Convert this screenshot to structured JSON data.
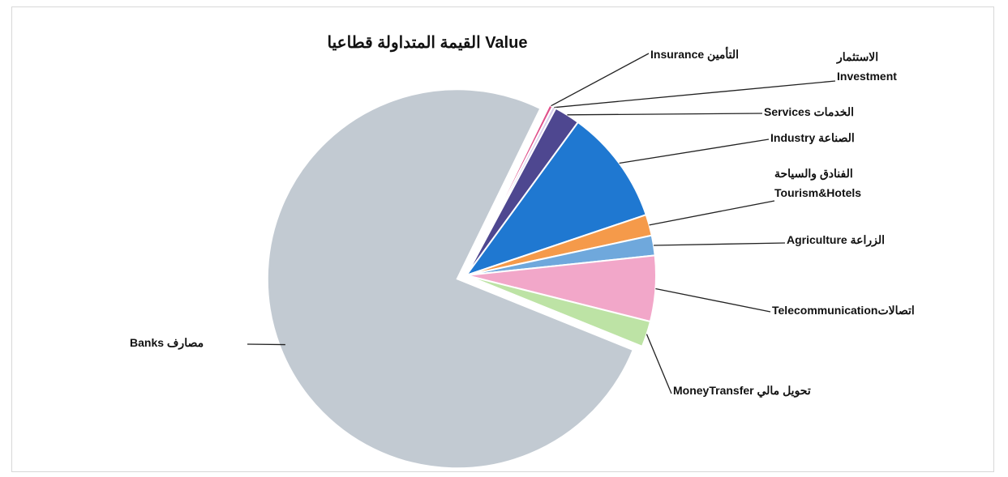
{
  "chart_data": {
    "type": "pie",
    "title": "القيمة المتداولة قطاعيا Value",
    "categories": [
      "Insurance التأمين",
      "الاستثمار\nInvestment",
      "Services الخدمات",
      "Industry الصناعة",
      "الفنادق والسياحة\nTourism&Hotels",
      "Agriculture الزراعة",
      "Telecommunicationاتصالات",
      "MoneyTransfer تحويل مالي",
      "Banks مصارف"
    ],
    "values": [
      0.3,
      0.3,
      2.2,
      9.8,
      1.8,
      1.7,
      5.6,
      2.2,
      76.1
    ],
    "colors": [
      "#e0508a",
      "#d8d0ec",
      "#4e4790",
      "#1f78d1",
      "#f59a4a",
      "#6fa8dc",
      "#f2a7c9",
      "#bde3a5",
      "#c2cad2"
    ]
  }
}
